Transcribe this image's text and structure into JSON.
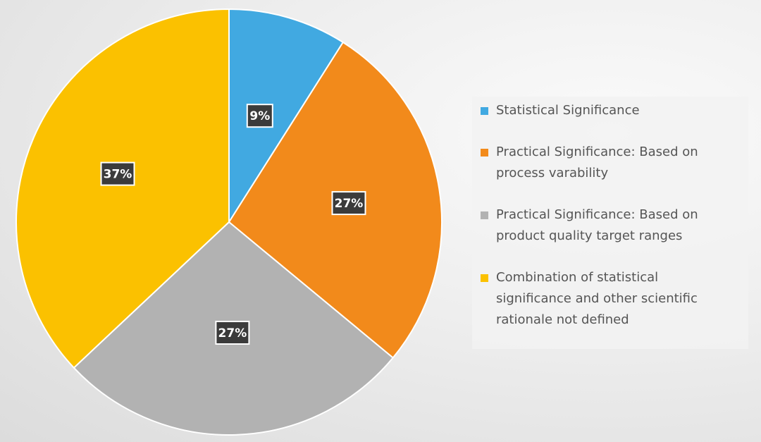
{
  "chart_data": {
    "type": "pie",
    "title": "",
    "start_angle_deg": 0,
    "direction": "clockwise",
    "slices": [
      {
        "label": "Statistical Significance",
        "value": 9,
        "data_label": "9%",
        "color": "#41A9E1"
      },
      {
        "label": "Practical Significance: Based on process varability",
        "value": 27,
        "data_label": "27%",
        "color": "#F28A1B"
      },
      {
        "label": "Practical Significance: Based on product quality target ranges",
        "value": 27,
        "data_label": "27%",
        "color": "#B2B2B2"
      },
      {
        "label": "Combination of statistical significance and other scientific rationale not defined",
        "value": 37,
        "data_label": "37%",
        "color": "#FBC100"
      }
    ],
    "legend": {
      "placement": "right",
      "entries": [
        {
          "text": "Statistical Significance",
          "color": "#41A9E1"
        },
        {
          "text": "Practical Significance: Based on\nprocess varability",
          "color": "#F28A1B"
        },
        {
          "text": "Practical Significance: Based on\nproduct quality target ranges",
          "color": "#B2B2B2"
        },
        {
          "text": "Combination of statistical\nsignificance and other scientific\nrationale not defined",
          "color": "#FBC100"
        }
      ]
    }
  }
}
